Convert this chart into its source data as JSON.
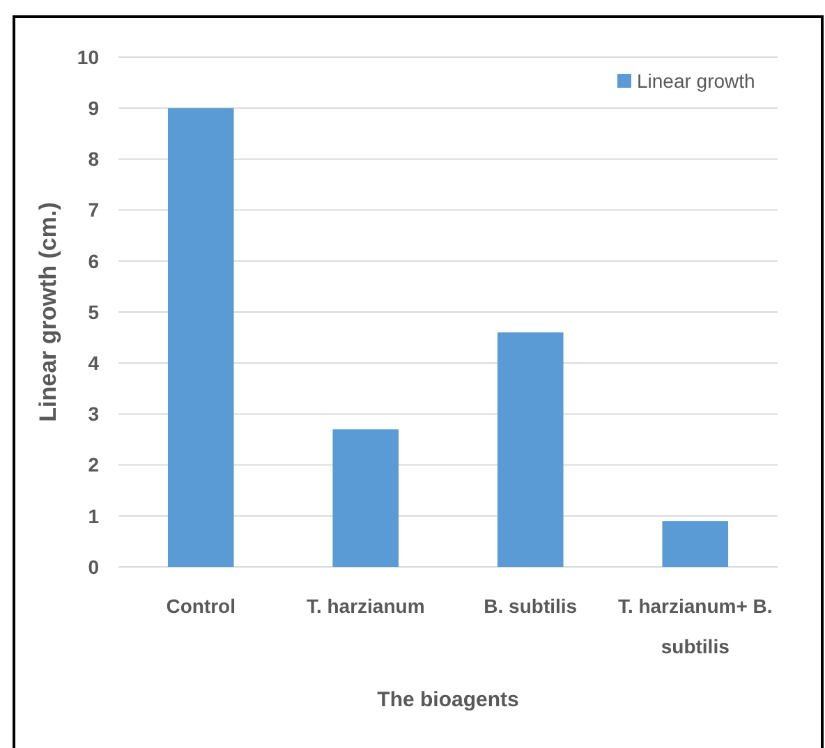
{
  "chart_data": {
    "type": "bar",
    "xlabel": "The bioagents",
    "ylabel": "Linear growth (cm.)",
    "categories": [
      "Control",
      "T. harzianum",
      "B. subtilis",
      "T. harzianum+ B. subtilis"
    ],
    "series": [
      {
        "name": "Linear growth",
        "color": "#5b9bd5",
        "values": [
          9,
          2.7,
          4.6,
          0.9
        ]
      }
    ],
    "ylim": [
      0,
      10
    ],
    "yticks": [
      0,
      1,
      2,
      3,
      4,
      5,
      6,
      7,
      8,
      9,
      10
    ],
    "grid": "y",
    "legend": "top right"
  }
}
